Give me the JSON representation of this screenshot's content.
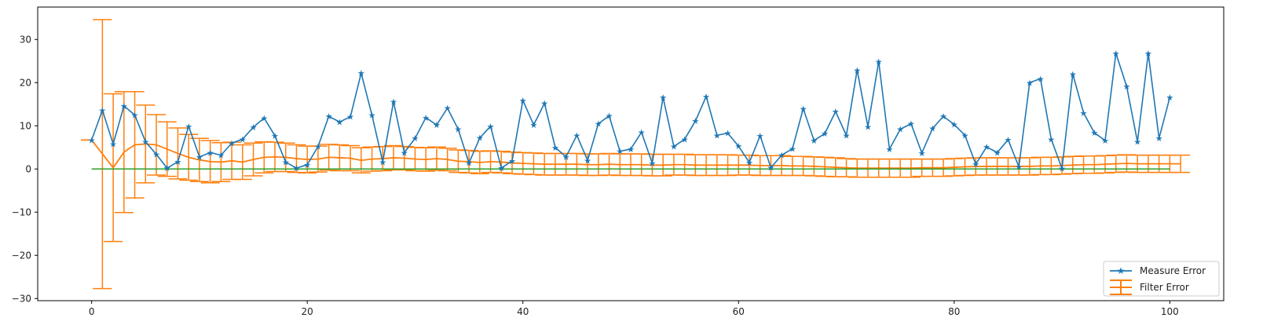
{
  "chart_data": {
    "type": "line",
    "title": "",
    "xlabel": "",
    "ylabel": "",
    "xlim": [
      -5,
      105
    ],
    "ylim": [
      -30.5,
      37.5
    ],
    "xticks": [
      0,
      20,
      40,
      60,
      80,
      100
    ],
    "xtick_labels": [
      "0",
      "20",
      "40",
      "60",
      "80",
      "100"
    ],
    "yticks": [
      -30,
      -20,
      -10,
      0,
      10,
      20,
      30
    ],
    "ytick_labels": [
      "−30",
      "−20",
      "−10",
      "0",
      "10",
      "20",
      "30"
    ],
    "grid": false,
    "legend_position": "lower-right",
    "series": [
      {
        "name": "Measure Error",
        "kind": "line-star-markers",
        "color": "#1f77b4",
        "x": [
          0,
          1,
          2,
          3,
          4,
          5,
          6,
          7,
          8,
          9,
          10,
          11,
          12,
          13,
          14,
          15,
          16,
          17,
          18,
          19,
          20,
          21,
          22,
          23,
          24,
          25,
          26,
          27,
          28,
          29,
          30,
          31,
          32,
          33,
          34,
          35,
          36,
          37,
          38,
          39,
          40,
          41,
          42,
          43,
          44,
          45,
          46,
          47,
          48,
          49,
          50,
          51,
          52,
          53,
          54,
          55,
          56,
          57,
          58,
          59,
          60,
          61,
          62,
          63,
          64,
          65,
          66,
          67,
          68,
          69,
          70,
          71,
          72,
          73,
          74,
          75,
          76,
          77,
          78,
          79,
          80,
          81,
          82,
          83,
          84,
          85,
          86,
          87,
          88,
          89,
          90,
          91,
          92,
          93,
          94,
          95,
          96,
          97,
          98,
          99,
          100
        ],
        "y": [
          6.7,
          13.6,
          5.8,
          14.6,
          12.5,
          6.3,
          3.4,
          0.2,
          1.7,
          9.9,
          2.8,
          3.8,
          3.2,
          6.0,
          6.9,
          9.7,
          11.8,
          7.7,
          1.6,
          0.2,
          1.0,
          5.2,
          12.2,
          10.9,
          12.1,
          22.2,
          12.5,
          1.6,
          15.6,
          3.8,
          7.1,
          11.9,
          10.2,
          14.1,
          9.2,
          1.4,
          7.2,
          9.9,
          0.2,
          1.9,
          15.9,
          10.2,
          15.2,
          5.0,
          2.8,
          7.8,
          2.0,
          10.5,
          12.3,
          4.1,
          4.6,
          8.5,
          1.3,
          16.6,
          5.2,
          6.9,
          11.1,
          16.8,
          7.8,
          8.3,
          5.3,
          1.5,
          7.7,
          0.3,
          3.2,
          4.7,
          14.0,
          6.6,
          8.2,
          13.3,
          7.8,
          22.9,
          9.8,
          24.9,
          4.6,
          9.2,
          10.5,
          3.7,
          9.4,
          12.2,
          10.3,
          7.8,
          1.1,
          5.1,
          3.8,
          6.8,
          0.5,
          20.0,
          20.9,
          6.9,
          0.1,
          22.0,
          13.0,
          8.4,
          6.6,
          26.8,
          19.1,
          6.3,
          26.8,
          7.1,
          16.6
        ]
      },
      {
        "name": "Filter Error",
        "kind": "errorbar",
        "color": "#ff7f0e",
        "x": [
          -1,
          0,
          2,
          3,
          4,
          5,
          6,
          7,
          8,
          9,
          10,
          11,
          12,
          13,
          14,
          15,
          16,
          17,
          18,
          19,
          20,
          21,
          22,
          23,
          24,
          25,
          26,
          27,
          28,
          29,
          30,
          31,
          32,
          33,
          34,
          35,
          36,
          37,
          38,
          39,
          40,
          41,
          42,
          43,
          44,
          45,
          46,
          47,
          48,
          49,
          50,
          51,
          52,
          53,
          54,
          55,
          56,
          57,
          58,
          59,
          60,
          61,
          62,
          63,
          64,
          65,
          66,
          67,
          68,
          69,
          70,
          71,
          72,
          73,
          74,
          75,
          76,
          77,
          78,
          79,
          80,
          81,
          82,
          83,
          84,
          85,
          86,
          87,
          88,
          89,
          90,
          91,
          92,
          93,
          94,
          95,
          96,
          97,
          98,
          99,
          100,
          101
        ],
        "y": [
          6.7,
          6.7,
          0.3,
          3.9,
          5.6,
          5.8,
          5.6,
          4.6,
          3.6,
          2.7,
          2.1,
          1.7,
          1.6,
          1.9,
          1.6,
          2.2,
          2.7,
          2.8,
          2.7,
          2.4,
          2.2,
          2.3,
          2.7,
          2.6,
          2.5,
          2.0,
          2.3,
          2.4,
          2.6,
          2.5,
          2.3,
          2.2,
          2.4,
          2.2,
          1.8,
          1.7,
          1.5,
          1.7,
          1.6,
          1.4,
          1.3,
          1.2,
          1.1,
          1.1,
          1.1,
          1.1,
          1.0,
          1.0,
          1.1,
          1.0,
          1.0,
          1.0,
          0.9,
          0.9,
          1.0,
          1.0,
          0.9,
          0.9,
          0.9,
          0.9,
          0.9,
          0.9,
          0.8,
          0.8,
          0.8,
          0.7,
          0.7,
          0.6,
          0.5,
          0.4,
          0.3,
          0.2,
          0.2,
          0.2,
          0.2,
          0.2,
          0.2,
          0.3,
          0.3,
          0.3,
          0.4,
          0.5,
          0.6,
          0.6,
          0.6,
          0.6,
          0.6,
          0.6,
          0.7,
          0.7,
          0.8,
          0.9,
          1.0,
          1.0,
          1.1,
          1.2,
          1.3,
          1.2,
          1.2,
          1.2,
          1.2,
          1.2
        ],
        "err": [
          0,
          0,
          17.1,
          14.0,
          12.3,
          9.0,
          7.0,
          6.3,
          5.9,
          5.3,
          5.0,
          4.9,
          4.5,
          4.3,
          4.0,
          3.8,
          3.6,
          3.4,
          3.3,
          3.2,
          3.1,
          3.0,
          3.0,
          3.0,
          2.9,
          2.9,
          2.8,
          2.8,
          2.8,
          2.7,
          2.7,
          2.7,
          2.7,
          2.6,
          2.6,
          2.6,
          2.6,
          2.5,
          2.5,
          2.5,
          2.5,
          2.5,
          2.5,
          2.5,
          2.5,
          2.5,
          2.5,
          2.5,
          2.5,
          2.5,
          2.5,
          2.5,
          2.5,
          2.5,
          2.4,
          2.4,
          2.4,
          2.4,
          2.4,
          2.4,
          2.3,
          2.3,
          2.3,
          2.3,
          2.3,
          2.2,
          2.2,
          2.2,
          2.2,
          2.2,
          2.1,
          2.1,
          2.1,
          2.1,
          2.1,
          2.1,
          2.1,
          2.0,
          2.0,
          2.0,
          2.0,
          2.0,
          2.0,
          2.0,
          2.0,
          2.0,
          2.0,
          2.0,
          2.0,
          2.0,
          2.0,
          2.0,
          2.0,
          2.0,
          2.0,
          2.0,
          2.0,
          2.0,
          2.0,
          2.0,
          2.0,
          2.0
        ],
        "big_bar": {
          "x": 1,
          "lower": -27.7,
          "upper": 34.6
        }
      },
      {
        "name": "",
        "kind": "line",
        "color": "#2ca02c",
        "x": [
          0,
          100
        ],
        "y": [
          0,
          0
        ]
      }
    ]
  }
}
